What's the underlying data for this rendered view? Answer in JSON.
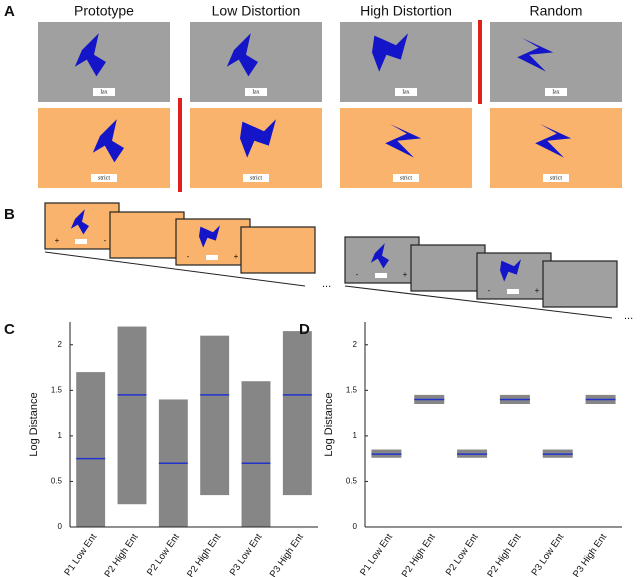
{
  "panels": {
    "A": {
      "label": "A",
      "columns": [
        "Prototype",
        "Low Distortion",
        "High Distortion",
        "Random"
      ],
      "lax": "lax",
      "strict": "strict"
    },
    "B": {
      "label": "B",
      "plus": "+",
      "minus": "-",
      "ellipsis": "..."
    }
  },
  "chart_data": [
    {
      "type": "strip",
      "panel_label": "C",
      "y_label": "Log Distance",
      "categories": [
        "P1 Low Ent",
        "P2 High Ent",
        "P2 Low Ent",
        "P2 High Ent",
        "P3 Low Ent",
        "P3 High Ent"
      ],
      "min": [
        0,
        0.25,
        0,
        0.35,
        0,
        0.35
      ],
      "max": [
        1.7,
        2.2,
        1.4,
        2.1,
        1.6,
        2.15
      ],
      "center": [
        0.75,
        1.45,
        0.7,
        1.45,
        0.7,
        1.45
      ],
      "color": "#222222",
      "ylim": [
        0,
        2.25
      ],
      "yticks": [
        0,
        0.5,
        1,
        1.5,
        2
      ]
    },
    {
      "type": "strip",
      "panel_label": "D",
      "y_label": "Log Distance",
      "categories": [
        "P1 Low Ent",
        "P2 High Ent",
        "P2 Low Ent",
        "P2 High Ent",
        "P3 Low Ent",
        "P3 High Ent"
      ],
      "min": [
        0.76,
        1.35,
        0.76,
        1.35,
        0.76,
        1.35
      ],
      "max": [
        0.85,
        1.45,
        0.85,
        1.45,
        0.85,
        1.45
      ],
      "center": [
        0.8,
        1.4,
        0.8,
        1.4,
        0.8,
        1.4
      ],
      "color": "#222222",
      "ylim": [
        0,
        2.25
      ],
      "yticks": [
        0,
        0.5,
        1,
        1.5,
        2
      ]
    }
  ]
}
